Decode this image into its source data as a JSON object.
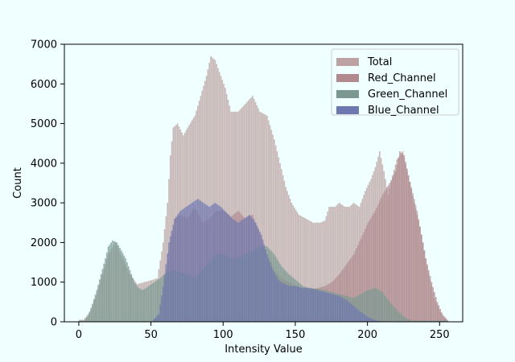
{
  "chart_data": {
    "type": "bar",
    "title": "",
    "xlabel": "Intensity Value",
    "ylabel": "Count",
    "xlim": [
      -10,
      266
    ],
    "ylim": [
      0,
      7000
    ],
    "xticks": [
      0,
      50,
      100,
      150,
      200,
      250
    ],
    "yticks": [
      0,
      1000,
      2000,
      3000,
      4000,
      5000,
      6000,
      7000
    ],
    "legend_position": "top-right",
    "grid": false,
    "series": [
      {
        "name": "Total",
        "color": "#bca2a2",
        "alpha": 0.75,
        "points": [
          [
            3,
            50
          ],
          [
            8,
            300
          ],
          [
            12,
            700
          ],
          [
            16,
            1200
          ],
          [
            20,
            1700
          ],
          [
            25,
            2000
          ],
          [
            30,
            1600
          ],
          [
            35,
            1200
          ],
          [
            40,
            950
          ],
          [
            45,
            1000
          ],
          [
            50,
            1050
          ],
          [
            54,
            1100
          ],
          [
            58,
            2000
          ],
          [
            61,
            3000
          ],
          [
            63,
            4200
          ],
          [
            65,
            4900
          ],
          [
            68,
            5000
          ],
          [
            72,
            4700
          ],
          [
            75,
            4900
          ],
          [
            80,
            5200
          ],
          [
            84,
            5700
          ],
          [
            88,
            6200
          ],
          [
            91,
            6700
          ],
          [
            94,
            6600
          ],
          [
            97,
            6300
          ],
          [
            101,
            5900
          ],
          [
            105,
            5300
          ],
          [
            110,
            5300
          ],
          [
            115,
            5500
          ],
          [
            120,
            5700
          ],
          [
            125,
            5300
          ],
          [
            130,
            5200
          ],
          [
            135,
            4600
          ],
          [
            139,
            4000
          ],
          [
            143,
            3400
          ],
          [
            147,
            3000
          ],
          [
            152,
            2700
          ],
          [
            157,
            2600
          ],
          [
            162,
            2500
          ],
          [
            167,
            2500
          ],
          [
            170,
            2550
          ],
          [
            173,
            2900
          ],
          [
            177,
            2900
          ],
          [
            180,
            3000
          ],
          [
            184,
            2900
          ],
          [
            187,
            2900
          ],
          [
            190,
            3000
          ],
          [
            194,
            2900
          ],
          [
            198,
            3300
          ],
          [
            202,
            3600
          ],
          [
            205,
            3900
          ],
          [
            208,
            4300
          ],
          [
            211,
            3800
          ],
          [
            214,
            3200
          ],
          [
            217,
            3700
          ],
          [
            220,
            4100
          ],
          [
            224,
            4300
          ],
          [
            227,
            3800
          ],
          [
            230,
            3400
          ],
          [
            234,
            2800
          ],
          [
            238,
            2000
          ],
          [
            242,
            1200
          ],
          [
            246,
            600
          ],
          [
            250,
            250
          ],
          [
            255,
            50
          ]
        ]
      },
      {
        "name": "Red_Channel",
        "color": "#b08a8e",
        "alpha": 0.75,
        "points": [
          [
            50,
            0
          ],
          [
            55,
            150
          ],
          [
            58,
            800
          ],
          [
            62,
            1800
          ],
          [
            66,
            2600
          ],
          [
            70,
            2700
          ],
          [
            75,
            2600
          ],
          [
            80,
            2900
          ],
          [
            85,
            2500
          ],
          [
            90,
            2600
          ],
          [
            95,
            2800
          ],
          [
            100,
            2800
          ],
          [
            105,
            2650
          ],
          [
            110,
            2800
          ],
          [
            115,
            2600
          ],
          [
            120,
            2700
          ],
          [
            125,
            2200
          ],
          [
            130,
            1700
          ],
          [
            135,
            1300
          ],
          [
            140,
            1100
          ],
          [
            145,
            1000
          ],
          [
            150,
            900
          ],
          [
            155,
            850
          ],
          [
            160,
            800
          ],
          [
            165,
            850
          ],
          [
            170,
            900
          ],
          [
            175,
            1000
          ],
          [
            180,
            1200
          ],
          [
            185,
            1450
          ],
          [
            190,
            1700
          ],
          [
            195,
            2100
          ],
          [
            200,
            2500
          ],
          [
            205,
            2800
          ],
          [
            210,
            3200
          ],
          [
            215,
            3500
          ],
          [
            219,
            3800
          ],
          [
            222,
            4300
          ],
          [
            225,
            4200
          ],
          [
            228,
            3700
          ],
          [
            232,
            3000
          ],
          [
            236,
            2400
          ],
          [
            240,
            1600
          ],
          [
            244,
            1000
          ],
          [
            248,
            500
          ],
          [
            252,
            150
          ],
          [
            255,
            30
          ]
        ]
      },
      {
        "name": "Green_Channel",
        "color": "#7a9890",
        "alpha": 0.75,
        "points": [
          [
            3,
            30
          ],
          [
            6,
            150
          ],
          [
            9,
            450
          ],
          [
            12,
            800
          ],
          [
            15,
            1200
          ],
          [
            18,
            1600
          ],
          [
            20,
            1900
          ],
          [
            23,
            2050
          ],
          [
            26,
            2000
          ],
          [
            29,
            1800
          ],
          [
            32,
            1600
          ],
          [
            35,
            1300
          ],
          [
            38,
            1000
          ],
          [
            41,
            850
          ],
          [
            44,
            800
          ],
          [
            48,
            900
          ],
          [
            52,
            1000
          ],
          [
            56,
            1100
          ],
          [
            60,
            1250
          ],
          [
            65,
            1300
          ],
          [
            70,
            1250
          ],
          [
            75,
            1200
          ],
          [
            80,
            1100
          ],
          [
            85,
            1300
          ],
          [
            90,
            1500
          ],
          [
            95,
            1700
          ],
          [
            100,
            1700
          ],
          [
            105,
            1600
          ],
          [
            110,
            1600
          ],
          [
            115,
            1700
          ],
          [
            120,
            1800
          ],
          [
            125,
            1900
          ],
          [
            130,
            1900
          ],
          [
            135,
            1700
          ],
          [
            140,
            1400
          ],
          [
            145,
            1200
          ],
          [
            150,
            1050
          ],
          [
            155,
            900
          ],
          [
            160,
            850
          ],
          [
            165,
            830
          ],
          [
            170,
            800
          ],
          [
            175,
            750
          ],
          [
            180,
            700
          ],
          [
            185,
            650
          ],
          [
            190,
            600
          ],
          [
            195,
            700
          ],
          [
            200,
            800
          ],
          [
            205,
            850
          ],
          [
            210,
            750
          ],
          [
            215,
            500
          ],
          [
            220,
            300
          ],
          [
            225,
            120
          ],
          [
            230,
            30
          ]
        ]
      },
      {
        "name": "Blue_Channel",
        "color": "#6d77b0",
        "alpha": 0.75,
        "points": [
          [
            50,
            0
          ],
          [
            55,
            200
          ],
          [
            58,
            900
          ],
          [
            62,
            2000
          ],
          [
            66,
            2600
          ],
          [
            70,
            2800
          ],
          [
            74,
            2900
          ],
          [
            78,
            3000
          ],
          [
            82,
            3100
          ],
          [
            86,
            3000
          ],
          [
            90,
            2900
          ],
          [
            94,
            3000
          ],
          [
            98,
            2900
          ],
          [
            102,
            2750
          ],
          [
            106,
            2600
          ],
          [
            110,
            2500
          ],
          [
            114,
            2600
          ],
          [
            118,
            2700
          ],
          [
            122,
            2500
          ],
          [
            126,
            2200
          ],
          [
            130,
            1700
          ],
          [
            134,
            1300
          ],
          [
            138,
            1050
          ],
          [
            142,
            950
          ],
          [
            146,
            900
          ],
          [
            150,
            900
          ],
          [
            155,
            850
          ],
          [
            160,
            850
          ],
          [
            165,
            800
          ],
          [
            170,
            750
          ],
          [
            175,
            700
          ],
          [
            180,
            650
          ],
          [
            185,
            550
          ],
          [
            190,
            400
          ],
          [
            195,
            250
          ],
          [
            200,
            120
          ],
          [
            205,
            40
          ],
          [
            210,
            0
          ]
        ]
      }
    ]
  }
}
